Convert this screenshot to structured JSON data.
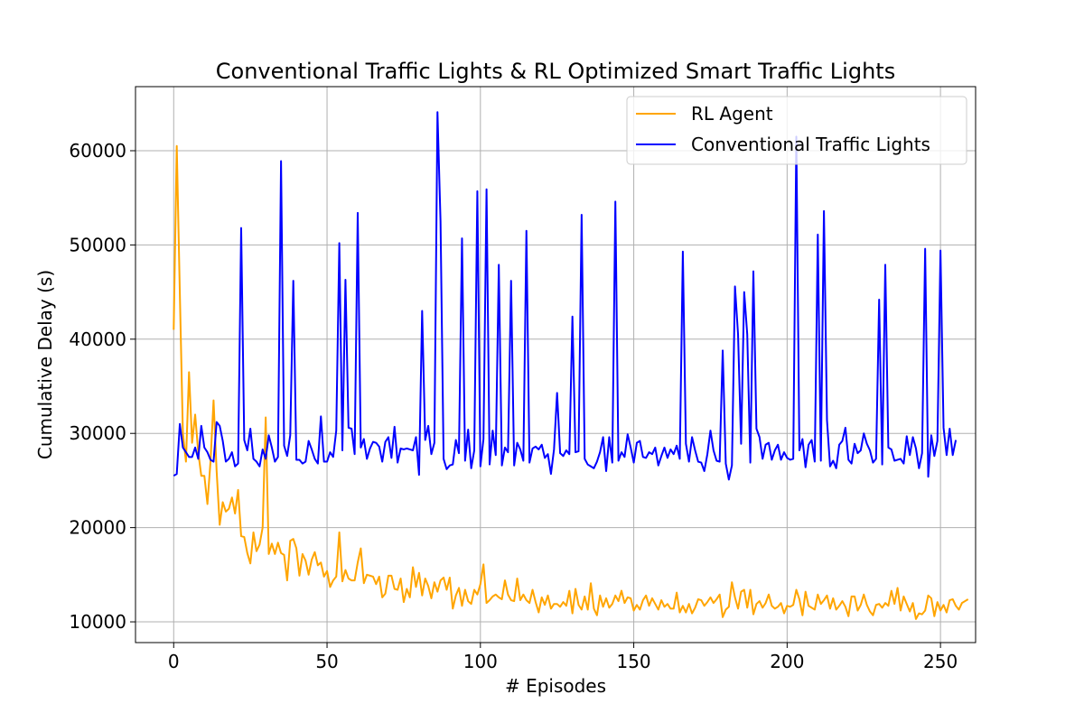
{
  "chart_data": {
    "type": "line",
    "title": "Conventional Traffic Lights & RL Optimized Smart Traffic Lights",
    "xlabel": "# Episodes",
    "ylabel": "Cumulative Delay (s)",
    "xlim": [
      -12.45,
      261.45
    ],
    "ylim": [
      7800,
      66800
    ],
    "xticks": [
      0,
      50,
      100,
      150,
      200,
      250
    ],
    "yticks": [
      10000,
      20000,
      30000,
      40000,
      50000,
      60000
    ],
    "xtick_labels": [
      "0",
      "50",
      "100",
      "150",
      "200",
      "250"
    ],
    "ytick_labels": [
      "10000",
      "20000",
      "30000",
      "40000",
      "50000",
      "60000"
    ],
    "grid": true,
    "legend_position": "top-right",
    "series": [
      {
        "name": "RL Agent",
        "color": "#ffa500",
        "values": [
          41000,
          60500,
          45000,
          30000,
          27000,
          36500,
          29000,
          32000,
          28000,
          25500,
          25500,
          22500,
          27000,
          33500,
          26000,
          20300,
          22700,
          21700,
          22000,
          23200,
          21500,
          24000,
          19100,
          19000,
          17300,
          16200,
          19500,
          17500,
          18200,
          20000,
          31700,
          17200,
          18300,
          17200,
          18400,
          17300,
          17100,
          14400,
          18600,
          18800,
          17800,
          14900,
          17200,
          16500,
          15000,
          16600,
          17400,
          16000,
          16300,
          14800,
          15400,
          13700,
          14400,
          14800,
          19500,
          14300,
          15500,
          14600,
          14400,
          14400,
          16300,
          17800,
          14100,
          15000,
          14900,
          14800,
          14000,
          14800,
          12600,
          13000,
          14900,
          14900,
          13500,
          13400,
          14600,
          12100,
          13500,
          12600,
          15800,
          13700,
          15200,
          12800,
          14600,
          13800,
          12500,
          14200,
          13200,
          14400,
          14700,
          13400,
          14700,
          11400,
          12800,
          13600,
          11700,
          13400,
          12200,
          11900,
          13400,
          12900,
          14000,
          16100,
          12000,
          12300,
          12700,
          12900,
          12600,
          12400,
          14400,
          12900,
          12300,
          12200,
          14600,
          12300,
          12900,
          12300,
          12000,
          13400,
          12100,
          11000,
          12600,
          11800,
          12800,
          11400,
          11900,
          11900,
          11600,
          12100,
          11700,
          13300,
          10900,
          13500,
          11800,
          11300,
          12700,
          11300,
          14100,
          11400,
          10700,
          12800,
          11600,
          12500,
          11500,
          11900,
          12800,
          12200,
          13300,
          12000,
          12600,
          12500,
          11200,
          11800,
          11300,
          12300,
          12800,
          11700,
          12500,
          11900,
          11300,
          12300,
          11600,
          11900,
          11400,
          11400,
          13100,
          11000,
          11700,
          11000,
          11900,
          10900,
          11500,
          12400,
          12300,
          11700,
          12100,
          12600,
          12000,
          12400,
          12900,
          10500,
          11300,
          11600,
          14200,
          12600,
          11400,
          13200,
          13400,
          11500,
          13400,
          10800,
          11900,
          12200,
          11500,
          12000,
          12900,
          11700,
          11400,
          11600,
          12000,
          10900,
          11700,
          11600,
          11800,
          13400,
          12400,
          10700,
          13200,
          11700,
          11500,
          11300,
          12900,
          11900,
          12300,
          12800,
          11400,
          12500,
          11300,
          11700,
          12200,
          11600,
          10600,
          12700,
          12700,
          11200,
          11800,
          12900,
          11800,
          11100,
          10700,
          11800,
          11900,
          11500,
          12000,
          11700,
          13300,
          11900,
          13600,
          11200,
          12700,
          11900,
          11100,
          12000,
          10300,
          10900,
          10800,
          11200,
          12800,
          12500,
          10600,
          12100,
          11200,
          11800,
          11000,
          12300,
          12400,
          11700,
          11300,
          12000,
          12200,
          12400
        ]
      },
      {
        "name": "Conventional Traffic Lights",
        "color": "#0000ff",
        "values": [
          25500,
          25700,
          31000,
          28500,
          28000,
          27500,
          27500,
          28500,
          27300,
          30800,
          28500,
          28000,
          27200,
          27000,
          31200,
          30800,
          29200,
          27000,
          27300,
          28000,
          26500,
          26800,
          51800,
          29300,
          28200,
          30500,
          27300,
          27000,
          26500,
          28300,
          27300,
          29800,
          28500,
          27000,
          27500,
          58900,
          28700,
          27600,
          29800,
          46200,
          27200,
          27200,
          26800,
          27000,
          29200,
          28300,
          27300,
          26800,
          31800,
          27000,
          27000,
          28000,
          27500,
          30300,
          50200,
          28200,
          46300,
          30600,
          30500,
          27800,
          53400,
          28500,
          29400,
          27300,
          28400,
          29100,
          29000,
          28600,
          27000,
          29100,
          29600,
          27400,
          30700,
          26900,
          28400,
          28300,
          28400,
          28300,
          28200,
          29600,
          25600,
          43000,
          29300,
          30800,
          27800,
          29000,
          64100,
          52500,
          27300,
          26200,
          26600,
          26700,
          29300,
          27900,
          50700,
          27100,
          30400,
          26300,
          28200,
          55700,
          26500,
          29400,
          55900,
          26700,
          30300,
          27700,
          47900,
          26600,
          28500,
          28000,
          46200,
          26600,
          29000,
          28300,
          27100,
          51500,
          26900,
          28400,
          28600,
          28300,
          28800,
          27400,
          27800,
          25700,
          28300,
          34300,
          27900,
          27600,
          28200,
          27800,
          42400,
          28000,
          28100,
          53200,
          27300,
          26700,
          26500,
          26300,
          27000,
          28000,
          29600,
          26000,
          29600,
          26900,
          54600,
          27100,
          28000,
          27500,
          29900,
          28500,
          26900,
          29000,
          29200,
          27500,
          27400,
          28000,
          27800,
          28500,
          26600,
          27600,
          28500,
          27400,
          28300,
          27800,
          28700,
          27300,
          49300,
          28900,
          27000,
          29600,
          28200,
          27000,
          26900,
          26000,
          27800,
          30300,
          28200,
          27100,
          27000,
          38800,
          26800,
          25100,
          26600,
          45600,
          40500,
          28900,
          45000,
          40500,
          26900,
          47200,
          30500,
          29600,
          27300,
          28800,
          29000,
          27200,
          28200,
          28800,
          27200,
          28000,
          27400,
          27200,
          27300,
          61500,
          28200,
          29400,
          26400,
          28800,
          29300,
          27000,
          51100,
          27100,
          53600,
          31400,
          26500,
          27100,
          26300,
          28800,
          29200,
          30600,
          27200,
          26800,
          28900,
          27900,
          28200,
          30000,
          28900,
          28200,
          26900,
          27300,
          44200,
          26700,
          47900,
          28500,
          28300,
          27100,
          27200,
          27300,
          26800,
          29700,
          27700,
          29600,
          28400,
          26300,
          27900,
          49600,
          25400,
          29800,
          27600,
          29200,
          49400,
          30600,
          27700,
          30500,
          27700,
          29300
        ]
      }
    ]
  }
}
